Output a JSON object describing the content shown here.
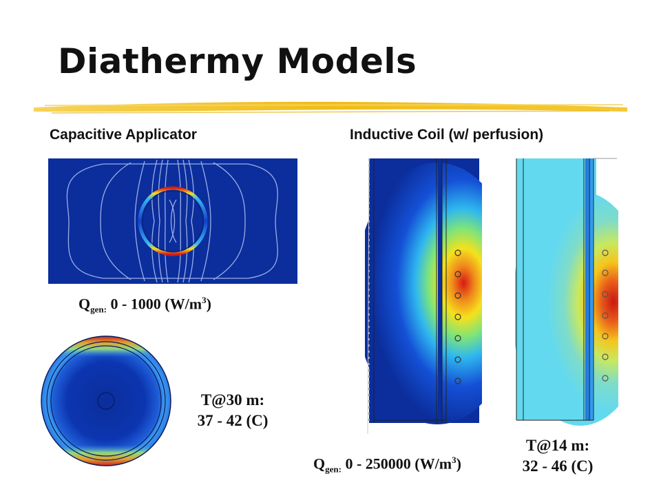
{
  "slide": {
    "title": "Diathermy Models",
    "headings": {
      "capacitive": "Capacitive Applicator",
      "inductive": "Inductive Coil (w/ perfusion)"
    },
    "captions": {
      "q_cap": {
        "prefix": "Q",
        "sub": "gen:",
        "text": " 0 - 1000 (W/m",
        "sup": "3",
        "suffix": ")"
      },
      "t30": {
        "line1": "T@30 m:",
        "line2": "37 - 42 (C)"
      },
      "q_ind": {
        "prefix": "Q",
        "sub": "gen:",
        "text": " 0 - 250000 (W/m",
        "sup": "3",
        "suffix": ")"
      },
      "t14": {
        "line1": "T@14 m:",
        "line2": "32 - 46 (C)"
      }
    },
    "colors": {
      "underline": "#f2c21f",
      "field_blue": "#0b2e9c",
      "hot_red": "#d81a12",
      "light_cyan": "#63d9ef"
    }
  }
}
